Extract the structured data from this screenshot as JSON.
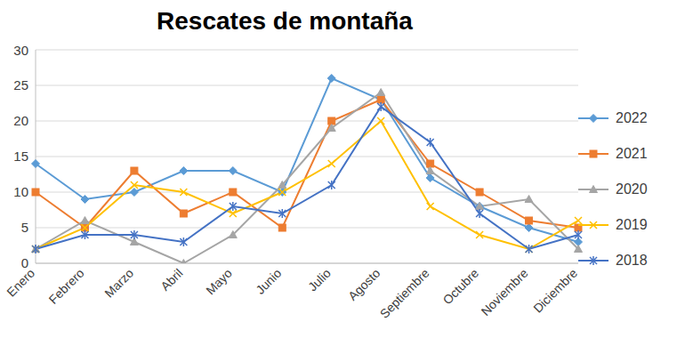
{
  "chart_data": {
    "type": "line",
    "title": "Rescates de montaña",
    "categories": [
      "Enero",
      "Febrero",
      "Marzo",
      "Abril",
      "Mayo",
      "Junio",
      "Julio",
      "Agosto",
      "Septiembre",
      "Octubre",
      "Noviembre",
      "Diciembre"
    ],
    "series": [
      {
        "name": "2022",
        "color": "#5b9bd5",
        "marker": "diamond",
        "values": [
          14,
          9,
          10,
          13,
          13,
          10,
          26,
          23,
          12,
          8,
          5,
          3
        ]
      },
      {
        "name": "2021",
        "color": "#ed7d31",
        "marker": "square",
        "values": [
          10,
          5,
          13,
          7,
          10,
          5,
          20,
          23,
          14,
          10,
          6,
          5
        ]
      },
      {
        "name": "2020",
        "color": "#a5a5a5",
        "marker": "triangle",
        "values": [
          2,
          6,
          3,
          0,
          4,
          11,
          19,
          24,
          13,
          8,
          9,
          2
        ]
      },
      {
        "name": "2019",
        "color": "#ffc000",
        "marker": "x",
        "values": [
          2,
          5,
          11,
          10,
          7,
          10,
          14,
          20,
          8,
          4,
          2,
          6
        ]
      },
      {
        "name": "2018",
        "color": "#4472c4",
        "marker": "star",
        "values": [
          2,
          4,
          4,
          3,
          8,
          7,
          11,
          22,
          17,
          7,
          2,
          4
        ]
      }
    ],
    "ylim": [
      0,
      30
    ],
    "yticks": [
      0,
      5,
      10,
      15,
      20,
      25,
      30
    ],
    "grid": true,
    "legend": "right"
  }
}
